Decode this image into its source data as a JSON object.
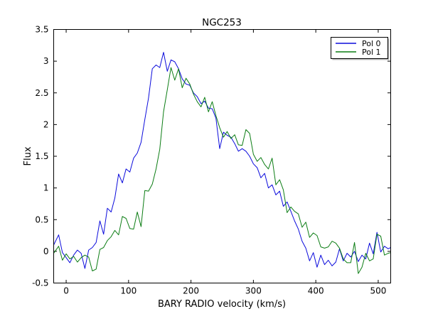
{
  "figure": {
    "background": "#ffffff",
    "frame_color": "#000000"
  },
  "chart_data": {
    "type": "line",
    "title": "NGC253",
    "xlabel": "BARY RADIO velocity (km/s)",
    "ylabel": "Flux",
    "xlim": [
      -20,
      520
    ],
    "ylim": [
      -0.5,
      3.5
    ],
    "grid": false,
    "x_ticks": [
      0,
      100,
      200,
      300,
      400,
      500
    ],
    "x_tick_labels": [
      "0",
      "100",
      "200",
      "300",
      "400",
      "500"
    ],
    "y_ticks": [
      -0.5,
      0,
      0.5,
      1,
      1.5,
      2,
      2.5,
      3,
      3.5
    ],
    "y_tick_labels": [
      "-0.5",
      "0",
      "0.5",
      "1",
      "1.5",
      "2",
      "2.5",
      "3",
      "3.5"
    ],
    "legend": {
      "position": "upper-right",
      "entries": [
        "Pol 0",
        "Pol 1"
      ]
    },
    "x": [
      -20,
      -12,
      -6,
      0,
      6,
      12,
      18,
      24,
      30,
      36,
      42,
      48,
      54,
      60,
      66,
      72,
      78,
      84,
      90,
      96,
      102,
      108,
      114,
      120,
      126,
      132,
      138,
      144,
      150,
      156,
      162,
      168,
      174,
      180,
      186,
      192,
      198,
      204,
      210,
      216,
      222,
      228,
      234,
      240,
      246,
      252,
      258,
      264,
      270,
      276,
      282,
      288,
      294,
      300,
      306,
      312,
      318,
      324,
      330,
      336,
      342,
      348,
      354,
      360,
      366,
      372,
      378,
      384,
      390,
      396,
      402,
      408,
      414,
      420,
      426,
      432,
      438,
      444,
      450,
      456,
      462,
      468,
      474,
      480,
      486,
      492,
      498,
      504,
      510,
      516,
      520
    ],
    "series": [
      {
        "name": "Pol 0",
        "color": "#0b0bdc",
        "values": [
          0.1,
          0.26,
          -0.02,
          -0.1,
          -0.18,
          -0.06,
          0.02,
          -0.03,
          -0.27,
          0.02,
          0.06,
          0.14,
          0.48,
          0.27,
          0.68,
          0.62,
          0.84,
          1.22,
          1.08,
          1.3,
          1.25,
          1.47,
          1.55,
          1.72,
          2.08,
          2.42,
          2.88,
          2.94,
          2.9,
          3.14,
          2.84,
          3.02,
          2.99,
          2.88,
          2.72,
          2.64,
          2.62,
          2.5,
          2.44,
          2.33,
          2.37,
          2.26,
          2.25,
          2.1,
          1.62,
          1.88,
          1.83,
          1.8,
          1.7,
          1.58,
          1.62,
          1.58,
          1.5,
          1.38,
          1.32,
          1.16,
          1.23,
          1.0,
          1.05,
          0.89,
          0.95,
          0.71,
          0.78,
          0.63,
          0.48,
          0.35,
          0.16,
          0.05,
          -0.15,
          -0.02,
          -0.25,
          -0.06,
          -0.21,
          -0.14,
          -0.23,
          -0.17,
          0.04,
          -0.15,
          -0.03,
          -0.09,
          0.0,
          -0.16,
          -0.06,
          -0.12,
          0.13,
          -0.04,
          0.3,
          -0.01,
          0.08,
          0.04,
          0.06
        ]
      },
      {
        "name": "Pol 1",
        "color": "#0c7d14",
        "values": [
          -0.03,
          0.08,
          -0.14,
          -0.04,
          -0.12,
          -0.08,
          -0.17,
          -0.1,
          -0.06,
          -0.09,
          -0.31,
          -0.28,
          0.03,
          0.06,
          0.17,
          0.23,
          0.33,
          0.26,
          0.55,
          0.52,
          0.36,
          0.35,
          0.62,
          0.39,
          0.96,
          0.95,
          1.06,
          1.3,
          1.61,
          2.2,
          2.55,
          2.9,
          2.7,
          2.88,
          2.58,
          2.73,
          2.64,
          2.48,
          2.36,
          2.28,
          2.43,
          2.2,
          2.36,
          2.14,
          1.95,
          1.8,
          1.89,
          1.78,
          1.84,
          1.68,
          1.67,
          1.92,
          1.86,
          1.53,
          1.42,
          1.48,
          1.37,
          1.3,
          1.47,
          1.05,
          1.13,
          0.97,
          0.61,
          0.7,
          0.63,
          0.59,
          0.38,
          0.46,
          0.22,
          0.29,
          0.25,
          0.07,
          0.05,
          0.07,
          0.16,
          0.13,
          0.05,
          -0.12,
          -0.18,
          -0.18,
          0.14,
          -0.35,
          -0.25,
          -0.03,
          -0.15,
          -0.12,
          0.27,
          0.24,
          -0.06,
          -0.03,
          -0.02
        ]
      }
    ]
  }
}
